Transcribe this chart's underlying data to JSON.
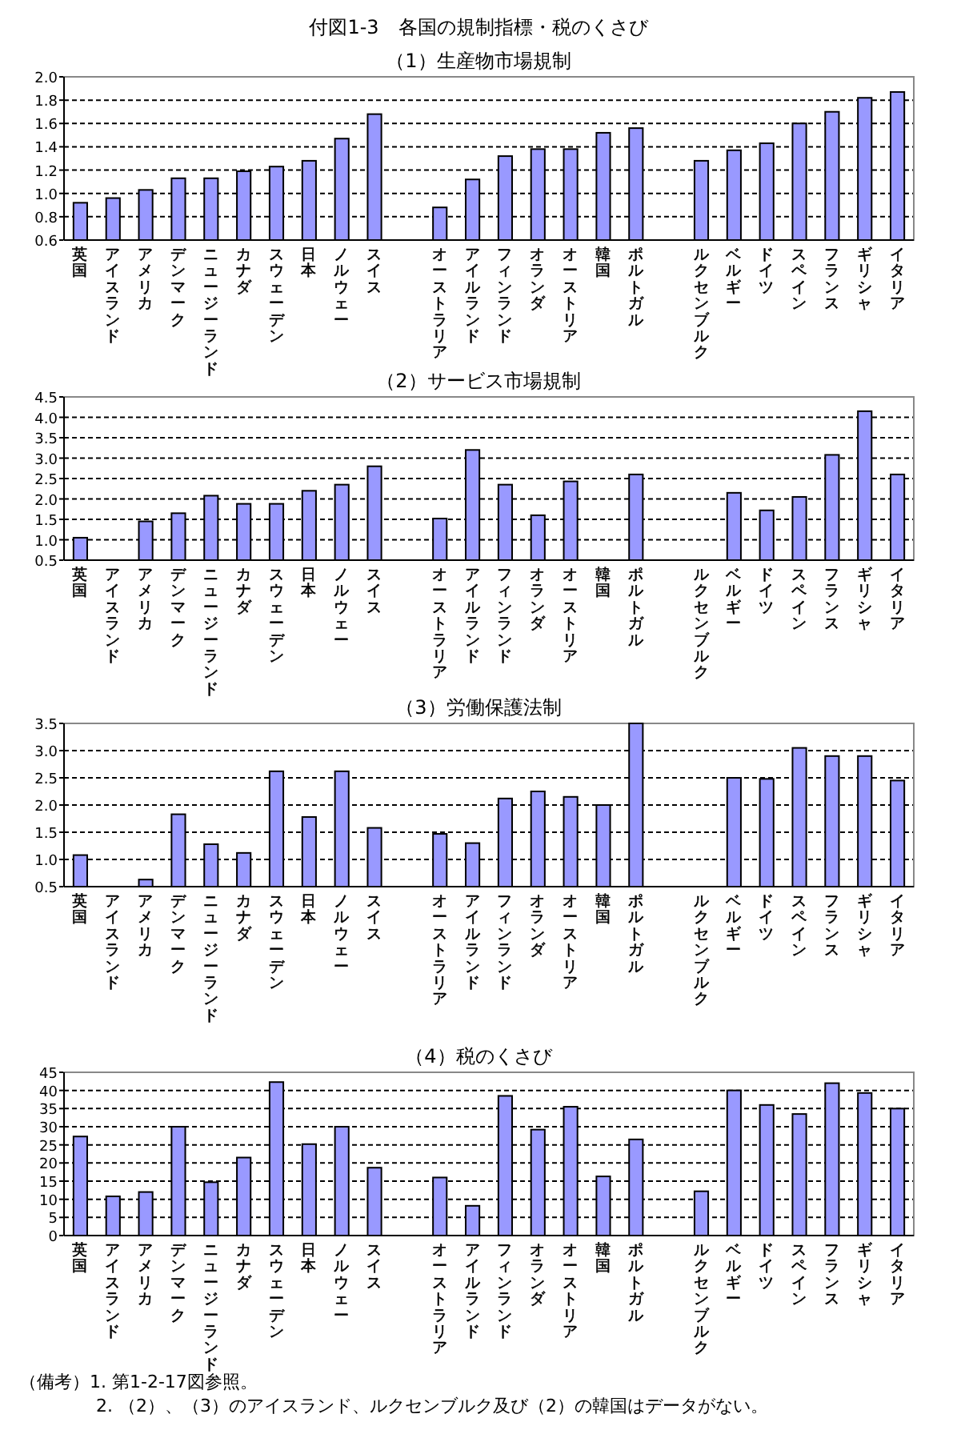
{
  "chart_data": [
    {
      "type": "bar",
      "title": "付図1-3　各国の規制指標・税のくさび",
      "subtitle": "（1）生産物市場規制",
      "categories": [
        "英国",
        "アイスランド",
        "アメリカ",
        "デンマーク",
        "ニュージーランド",
        "カナダ",
        "スウェーデン",
        "日本",
        "ノルウェー",
        "スイス",
        null,
        "オーストラリア",
        "アイルランド",
        "フィンランド",
        "オランダ",
        "オーストリア",
        "韓国",
        "ポルトガル",
        null,
        "ルクセンブルク",
        "ベルギー",
        "ドイツ",
        "スペイン",
        "フランス",
        "ギリシャ",
        "イタリア"
      ],
      "values": [
        0.92,
        0.96,
        1.03,
        1.13,
        1.13,
        1.19,
        1.23,
        1.28,
        1.47,
        1.68,
        null,
        0.88,
        1.12,
        1.32,
        1.38,
        1.38,
        1.52,
        1.56,
        null,
        1.28,
        1.37,
        1.43,
        1.6,
        1.7,
        1.82,
        1.87
      ],
      "color": "#9999ff",
      "ylim": [
        0.6,
        2.0
      ],
      "yticks": [
        {
          "value": 0.6,
          "label": "0.6"
        },
        {
          "value": 0.8,
          "label": "0.8"
        },
        {
          "value": 1.0,
          "label": "1.0"
        },
        {
          "value": 1.2,
          "label": "1.2"
        },
        {
          "value": 1.4,
          "label": "1.4"
        },
        {
          "value": 1.6,
          "label": "1.6"
        },
        {
          "value": 1.8,
          "label": "1.8"
        },
        {
          "value": 2.0,
          "label": "2.0"
        }
      ],
      "grid": "y"
    },
    {
      "type": "bar",
      "title": "（2）サービス市場規制",
      "categories": [
        "英国",
        "アイスランド",
        "アメリカ",
        "デンマーク",
        "ニュージーランド",
        "カナダ",
        "スウェーデン",
        "日本",
        "ノルウェー",
        "スイス",
        null,
        "オーストラリア",
        "アイルランド",
        "フィンランド",
        "オランダ",
        "オーストリア",
        "韓国",
        "ポルトガル",
        null,
        "ルクセンブルク",
        "ベルギー",
        "ドイツ",
        "スペイン",
        "フランス",
        "ギリシャ",
        "イタリア"
      ],
      "values": [
        1.05,
        null,
        1.45,
        1.65,
        2.08,
        1.88,
        1.88,
        2.2,
        2.35,
        2.8,
        null,
        1.52,
        3.2,
        2.35,
        1.6,
        2.43,
        null,
        2.6,
        null,
        null,
        2.15,
        1.72,
        2.05,
        3.08,
        4.15,
        2.6
      ],
      "color": "#9999ff",
      "ylim": [
        0.5,
        4.5
      ],
      "yticks": [
        {
          "value": 0.5,
          "label": "0.5"
        },
        {
          "value": 1.0,
          "label": "1.0"
        },
        {
          "value": 1.5,
          "label": "1.5"
        },
        {
          "value": 2.0,
          "label": "2.0"
        },
        {
          "value": 2.5,
          "label": "2.5"
        },
        {
          "value": 3.0,
          "label": "3.0"
        },
        {
          "value": 3.5,
          "label": "3.5"
        },
        {
          "value": 4.0,
          "label": "4.0"
        },
        {
          "value": 4.5,
          "label": "4.5"
        }
      ],
      "grid": "y"
    },
    {
      "type": "bar",
      "title": "（3）労働保護法制",
      "categories": [
        "英国",
        "アイスランド",
        "アメリカ",
        "デンマーク",
        "ニュージーランド",
        "カナダ",
        "スウェーデン",
        "日本",
        "ノルウェー",
        "スイス",
        null,
        "オーストラリア",
        "アイルランド",
        "フィンランド",
        "オランダ",
        "オーストリア",
        "韓国",
        "ポルトガル",
        null,
        "ルクセンブルク",
        "ベルギー",
        "ドイツ",
        "スペイン",
        "フランス",
        "ギリシャ",
        "イタリア"
      ],
      "values": [
        1.08,
        null,
        0.63,
        1.83,
        1.28,
        1.12,
        2.62,
        1.78,
        2.62,
        1.58,
        null,
        1.47,
        1.3,
        2.12,
        2.25,
        2.15,
        2.0,
        3.5,
        null,
        null,
        2.5,
        2.48,
        3.05,
        2.9,
        2.9,
        2.45
      ],
      "color": "#9999ff",
      "ylim": [
        0.5,
        3.5
      ],
      "yticks": [
        {
          "value": 0.5,
          "label": "0.5"
        },
        {
          "value": 1.0,
          "label": "1.0"
        },
        {
          "value": 1.5,
          "label": "1.5"
        },
        {
          "value": 2.0,
          "label": "2.0"
        },
        {
          "value": 2.5,
          "label": "2.5"
        },
        {
          "value": 3.0,
          "label": "3.0"
        },
        {
          "value": 3.5,
          "label": "3.5"
        }
      ],
      "grid": "y"
    },
    {
      "type": "bar",
      "title": "（4）税のくさび",
      "categories": [
        "英国",
        "アイスランド",
        "アメリカ",
        "デンマーク",
        "ニュージーランド",
        "カナダ",
        "スウェーデン",
        "日本",
        "ノルウェー",
        "スイス",
        null,
        "オーストラリア",
        "アイルランド",
        "フィンランド",
        "オランダ",
        "オーストリア",
        "韓国",
        "ポルトガル",
        null,
        "ルクセンブルク",
        "ベルギー",
        "ドイツ",
        "スペイン",
        "フランス",
        "ギリシャ",
        "イタリア"
      ],
      "values": [
        27.3,
        10.8,
        12,
        30,
        14.7,
        21.5,
        42.3,
        25.2,
        30,
        18.7,
        null,
        16,
        8.2,
        38.5,
        29.2,
        35.5,
        16.3,
        26.5,
        null,
        12.2,
        40,
        36,
        33.5,
        42,
        39.3,
        35
      ],
      "color": "#9999ff",
      "ylim": [
        0,
        45
      ],
      "yticks": [
        0,
        5,
        10,
        15,
        20,
        25,
        30,
        35,
        40,
        45
      ],
      "grid": "y",
      "annotations": [
        "（備考）1. 第1-2-17図参照。",
        "2. （2）、（3）のアイスランド、ルクセンブルク及び（2）の韓国はデータがない。"
      ]
    }
  ]
}
